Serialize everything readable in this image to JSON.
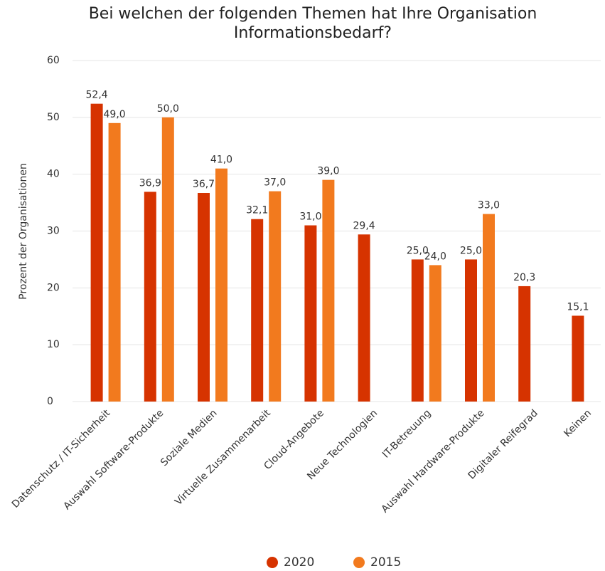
{
  "chart_data": {
    "type": "bar",
    "title": "Bei welchen der folgenden Themen hat Ihre Organisation Informationsbedarf?",
    "y_label": "Prozent der Organisationen",
    "categories": [
      "Datenschutz / IT-Sicherheit",
      "Auswahl Software-Produkte",
      "Soziale Medien",
      "Virtuelle Zusammenarbeit",
      "Cloud-Angebote",
      "Neue Technologien",
      "IT-Betreuung",
      "Auswahl Hardware-Produkte",
      "Digitaler Reifegrad",
      "Keinen"
    ],
    "series": [
      {
        "name": "2020",
        "color": "#d63300",
        "values": [
          52.4,
          36.9,
          36.7,
          32.1,
          31.0,
          29.4,
          25.0,
          25.0,
          20.3,
          15.1
        ],
        "value_labels": [
          "52,4",
          "36,9",
          "36,7",
          "32,1",
          "31,0",
          "29,4",
          "25,0",
          "25,0",
          "20,3",
          "15,1"
        ]
      },
      {
        "name": "2015",
        "color": "#f27a1e",
        "values": [
          49.0,
          50.0,
          41.0,
          37.0,
          39.0,
          null,
          24.0,
          33.0,
          null,
          null
        ],
        "value_labels": [
          "49,0",
          "50,0",
          "41,0",
          "37,0",
          "39,0",
          null,
          "24,0",
          "33,0",
          null,
          null
        ]
      }
    ],
    "ylim": [
      0,
      60
    ],
    "yticks": [
      0,
      10,
      20,
      30,
      40,
      50,
      60
    ],
    "grid": true,
    "legend": "bottom"
  }
}
